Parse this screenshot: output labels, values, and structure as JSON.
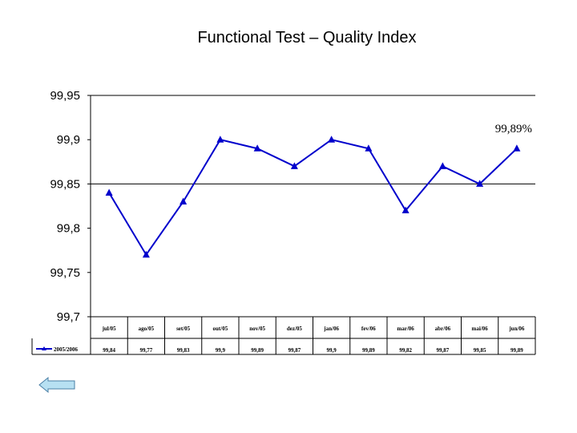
{
  "chart_data": {
    "type": "line",
    "title": "Functional Test – Quality Index",
    "categories": [
      "jul/05",
      "ago/05",
      "set/05",
      "out/05",
      "nov/05",
      "dez/05",
      "jan/06",
      "fev/06",
      "mar/06",
      "abr/06",
      "mai/06",
      "jun/06"
    ],
    "series": [
      {
        "name": "2005/2006",
        "values": [
          99.84,
          99.77,
          99.83,
          99.9,
          99.89,
          99.87,
          99.9,
          99.89,
          99.82,
          99.87,
          99.85,
          99.89
        ],
        "value_labels": [
          "99,84",
          "99,77",
          "99,83",
          "99,9",
          "99,89",
          "99,87",
          "99,9",
          "99,89",
          "99,82",
          "99,87",
          "99,85",
          "99,89"
        ],
        "color": "#0000cc",
        "marker": "triangle"
      }
    ],
    "ylim": [
      99.7,
      99.95
    ],
    "yticks": [
      99.95,
      99.9,
      99.85,
      99.8,
      99.75,
      99.7
    ],
    "ytick_labels": [
      "99,95",
      "99,9",
      "99,85",
      "99,8",
      "99,75",
      "99,7"
    ],
    "gridlines": [
      99.95,
      99.85
    ],
    "annotation": "99,89%",
    "legend": "data-table",
    "grid": true
  },
  "nav": {
    "back_icon": "left-arrow-icon",
    "back_color": "#b7e0f2"
  }
}
